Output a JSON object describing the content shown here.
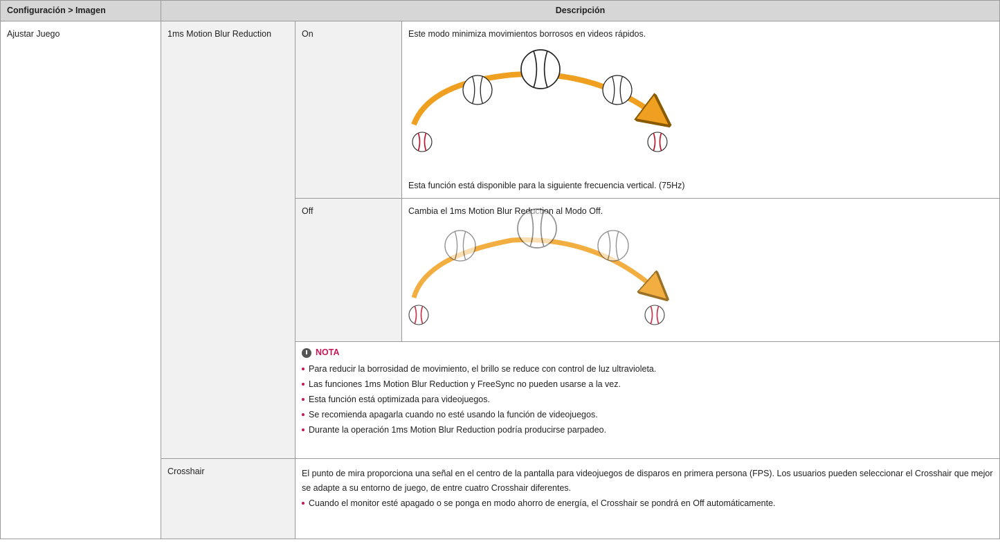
{
  "header": {
    "setting": "Configuración > Imagen",
    "description": "Descripción"
  },
  "table": {
    "section": "Ajustar Juego",
    "items": [
      {
        "name": "1ms Motion Blur Reduction",
        "options": [
          {
            "name": "On",
            "description": "Este modo minimiza movimientos borrosos en videos rápidos.",
            "footnote": "Esta función está disponible para la siguiente frecuencia vertical. (75Hz)"
          },
          {
            "name": "Off",
            "description": "Cambia el 1ms Motion Blur Reduction al Modo Off."
          }
        ],
        "note": {
          "title": "NOTA",
          "bullets": [
            "Para reducir la borrosidad de movimiento, el brillo se reduce con control de luz ultravioleta.",
            "Las funciones 1ms Motion Blur Reduction y FreeSync no pueden usarse a la vez.",
            "Esta función está optimizada para videojuegos.",
            "Se recomienda apagarla cuando no esté usando la función de videojuegos.",
            "Durante la operación 1ms Motion Blur Reduction podría producirse parpadeo."
          ]
        }
      },
      {
        "name": "Crosshair",
        "description": "El punto de mira proporciona una señal en el centro de la pantalla para videojuegos de disparos en primera persona (FPS). Los usuarios pueden seleccionar el Crosshair que mejor se adapte a su entorno de juego, de entre cuatro Crosshair diferentes.",
        "bullets": [
          "Cuando el monitor esté apagado o se ponga en modo ahorro de energía, el Crosshair se pondrá en Off automáticamente."
        ]
      }
    ]
  }
}
